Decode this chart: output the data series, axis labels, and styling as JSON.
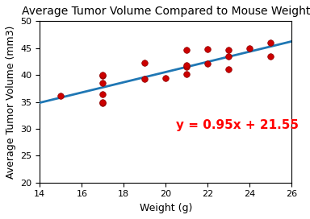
{
  "title": "Average Tumor Volume Compared to Mouse Weight",
  "xlabel": "Weight (g)",
  "ylabel": "Average Tumor Volume (mm3)",
  "xlim": [
    14,
    26
  ],
  "ylim": [
    20,
    50
  ],
  "scatter_x": [
    15,
    17,
    17,
    17,
    17,
    17,
    17,
    19,
    19,
    20,
    21,
    21,
    21,
    21,
    22,
    22,
    23,
    23,
    23,
    24,
    25,
    25
  ],
  "scatter_y": [
    36.1,
    38.5,
    39.8,
    40.0,
    36.5,
    34.8,
    35.0,
    42.2,
    39.3,
    39.4,
    41.5,
    41.8,
    44.7,
    40.1,
    42.1,
    44.8,
    43.4,
    44.7,
    41.1,
    45.0,
    46.0,
    43.5
  ],
  "scatter_color": "#cc0000",
  "scatter_edgecolor": "#8b0000",
  "line_color": "#1f77b4",
  "line_slope": 0.95,
  "line_intercept": 21.55,
  "equation_text": "y = 0.95x + 21.55",
  "equation_color": "red",
  "equation_x": 20.5,
  "equation_y": 30.0,
  "equation_fontsize": 11,
  "title_fontsize": 10,
  "axis_label_fontsize": 9,
  "tick_fontsize": 8,
  "scatter_size": 30,
  "linewidth": 2
}
